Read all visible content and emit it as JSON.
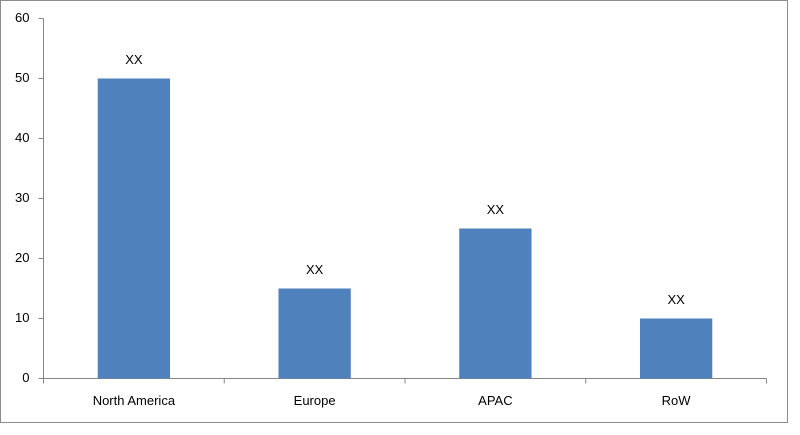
{
  "chart_data": {
    "type": "bar",
    "categories": [
      "North America",
      "Europe",
      "APAC",
      "RoW"
    ],
    "values": [
      50,
      15,
      25,
      10
    ],
    "value_labels": [
      "XX",
      "XX",
      "XX",
      "XX"
    ],
    "color": "#4f81bd",
    "ylim": [
      0,
      60
    ],
    "yticks": [
      0,
      10,
      20,
      30,
      40,
      50,
      60
    ],
    "grid": false
  }
}
